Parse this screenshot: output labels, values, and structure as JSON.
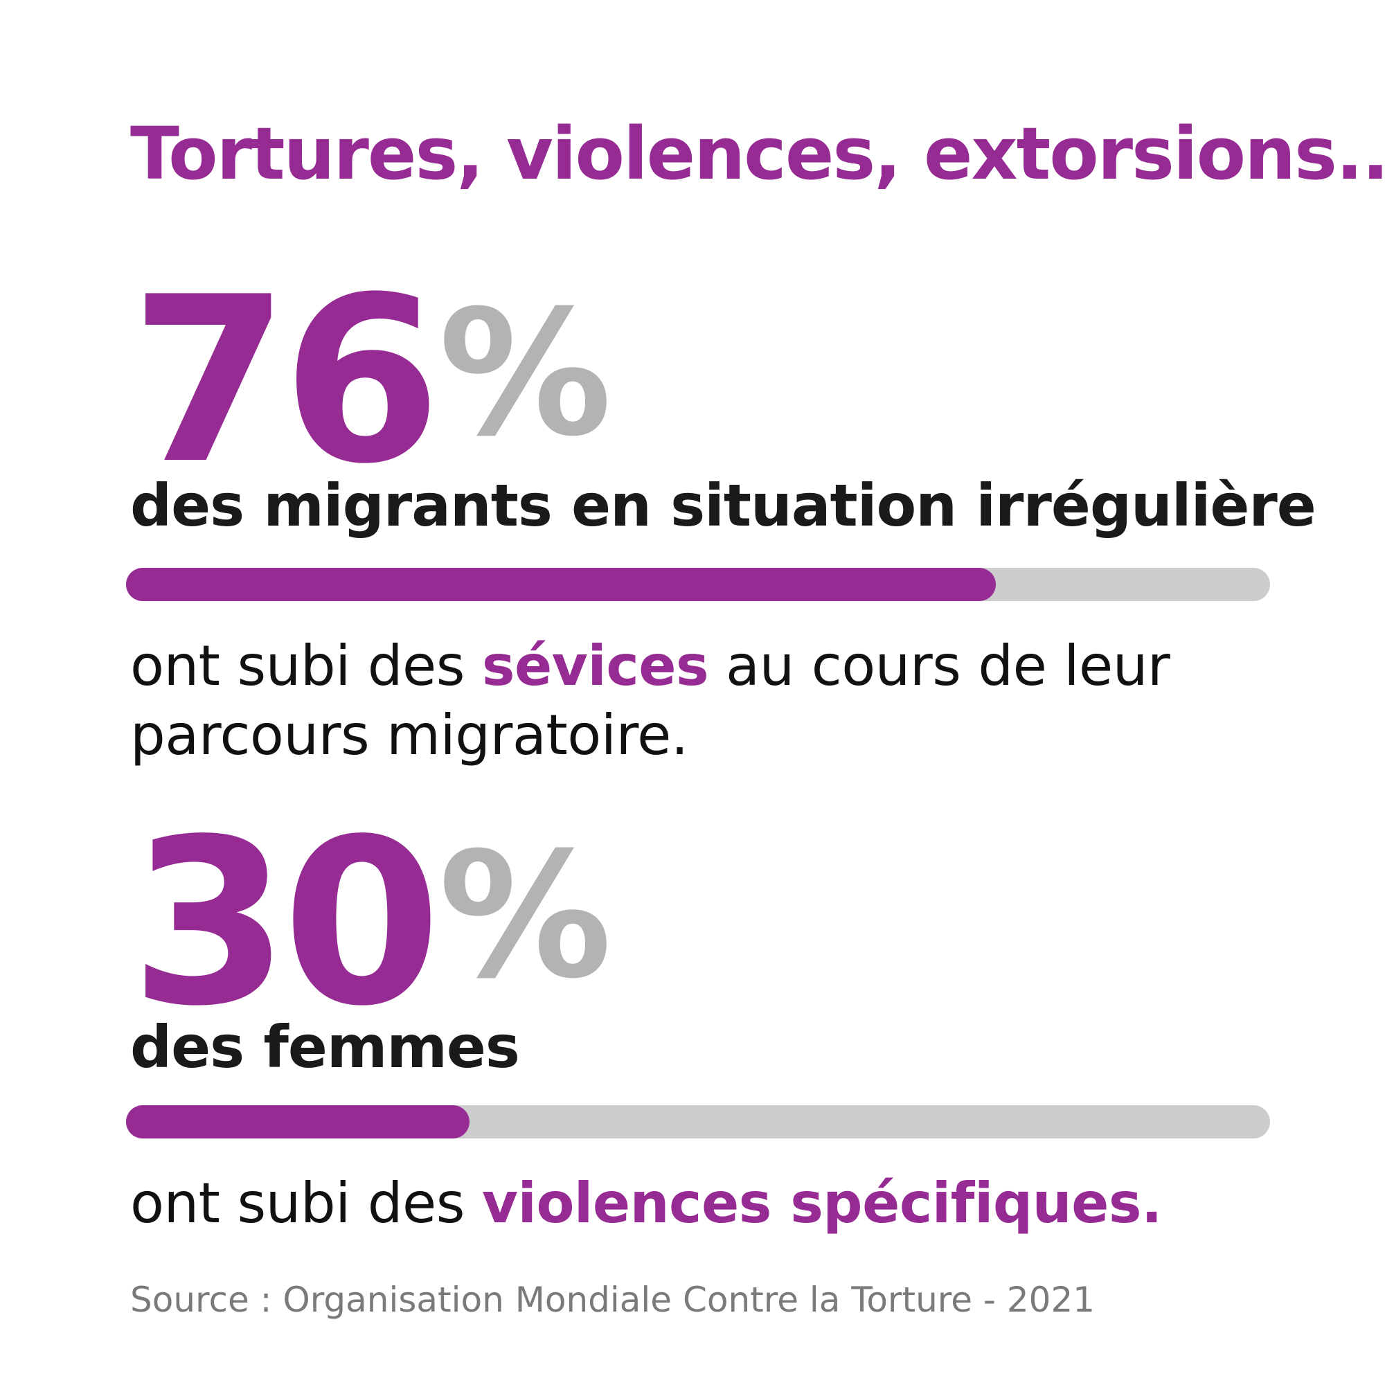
{
  "title": "Tortures, violences, extorsions...",
  "stats": [
    {
      "number": "76",
      "percent_sign": "%",
      "subject": "des migrants en situation irrégulière",
      "fraction": 0.76,
      "text_before": "ont subi des ",
      "highlight": "sévices",
      "text_after": " au cours de leur parcours migratoire."
    },
    {
      "number": "30",
      "percent_sign": "%",
      "subject": "des femmes",
      "fraction": 0.3,
      "text_before": "ont subi des ",
      "highlight": "violences spécifiques.",
      "text_after": ""
    }
  ],
  "source": "Source : Organisation Mondiale Contre la Torture - 2021",
  "colors": {
    "accent": "#962b93",
    "percent_gray": "#b3b3b3",
    "track_gray": "#cccccc",
    "text_dark": "#1a1a1a",
    "source_gray": "#7a7a7a"
  }
}
